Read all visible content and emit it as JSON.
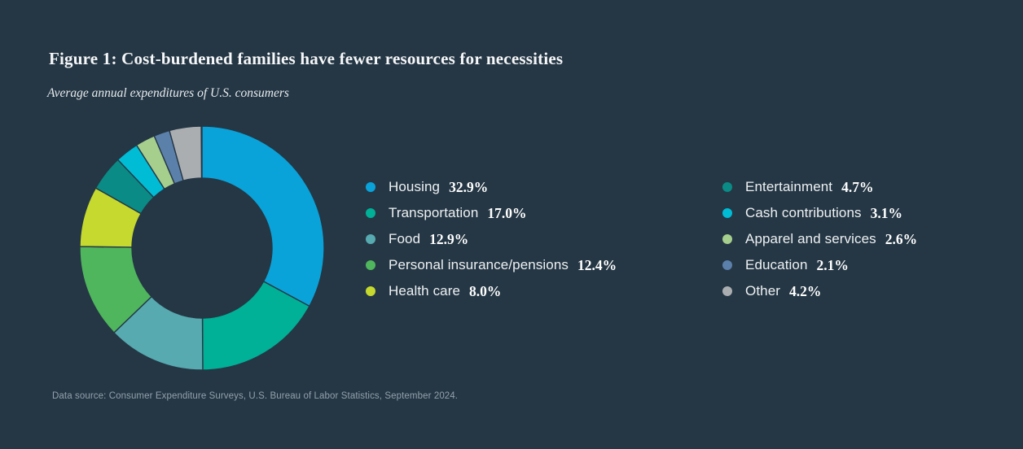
{
  "page": {
    "background_color": "#253745"
  },
  "header": {
    "title": "Figure 1: Cost-burdened families have fewer resources for necessities",
    "subtitle": "Average annual expenditures of U.S. consumers"
  },
  "chart_data": {
    "type": "pie",
    "variant": "donut",
    "title": "Average annual expenditures of U.S. consumers",
    "categories": [
      "Housing",
      "Transportation",
      "Food",
      "Personal insurance/pensions",
      "Health care",
      "Entertainment",
      "Cash contributions",
      "Apparel and services",
      "Education",
      "Other"
    ],
    "values": [
      32.9,
      17.0,
      12.9,
      12.4,
      8.0,
      4.7,
      3.1,
      2.6,
      2.1,
      4.2
    ],
    "unit": "%",
    "colors": [
      "#0aa3d9",
      "#00b097",
      "#57aab0",
      "#4fb65d",
      "#c5d92e",
      "#0a8b86",
      "#00bcd5",
      "#a6cf8d",
      "#5b80aa",
      "#abaeb1"
    ],
    "start_angle": "12 o'clock, clockwise",
    "inner_radius_ratio": 0.57,
    "segment_outline_color": "#253745",
    "legend_position": "right, two columns",
    "data_labels": "shown in legend"
  },
  "legend": {
    "items": [
      {
        "label": "Housing",
        "value": "32.9%",
        "color": "#0aa3d9"
      },
      {
        "label": "Transportation",
        "value": "17.0%",
        "color": "#00b097"
      },
      {
        "label": "Food",
        "value": "12.9%",
        "color": "#57aab0"
      },
      {
        "label": "Personal insurance/pensions",
        "value": "12.4%",
        "color": "#4fb65d"
      },
      {
        "label": "Health care",
        "value": "8.0%",
        "color": "#c5d92e"
      },
      {
        "label": "Entertainment",
        "value": "4.7%",
        "color": "#0a8b86"
      },
      {
        "label": "Cash contributions",
        "value": "3.1%",
        "color": "#00bcd5"
      },
      {
        "label": "Apparel and services",
        "value": "2.6%",
        "color": "#a6cf8d"
      },
      {
        "label": "Education",
        "value": "2.1%",
        "color": "#5b80aa"
      },
      {
        "label": "Other",
        "value": "4.2%",
        "color": "#abaeb1"
      }
    ]
  },
  "footer": {
    "source": "Data source: Consumer Expenditure Surveys, U.S. Bureau of Labor Statistics, September 2024."
  }
}
